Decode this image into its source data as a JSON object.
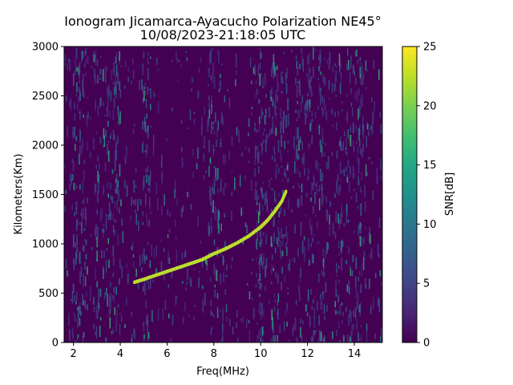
{
  "chart_data": {
    "type": "heatmap",
    "title": "Ionogram Jicamarca-Ayacucho Polarization NE45°",
    "subtitle": "10/08/2023-21:18:05 UTC",
    "xlabel": "Freq(MHz)",
    "ylabel": "Kilometers(Km)",
    "xlim": [
      1.6,
      15.2
    ],
    "ylim": [
      0,
      3000
    ],
    "xticks": [
      2,
      4,
      6,
      8,
      10,
      12,
      14
    ],
    "yticks": [
      0,
      500,
      1000,
      1500,
      2000,
      2500,
      3000
    ],
    "colorbar": {
      "label": "SNR[dB]",
      "range": [
        0,
        25
      ],
      "ticks": [
        0,
        5,
        10,
        15,
        20,
        25
      ],
      "colormap": "viridis"
    },
    "background_color": "#440154",
    "trace": {
      "description_series": "echo trace",
      "freq_mhz": [
        4.6,
        5.0,
        5.5,
        6.0,
        6.5,
        7.0,
        7.5,
        8.0,
        8.5,
        9.0,
        9.5,
        10.0,
        10.3,
        10.6,
        10.9,
        11.1
      ],
      "range_km": [
        610,
        640,
        680,
        720,
        760,
        800,
        840,
        900,
        950,
        1010,
        1080,
        1170,
        1240,
        1330,
        1430,
        1540
      ],
      "snr_db": 23
    },
    "grid": false
  }
}
